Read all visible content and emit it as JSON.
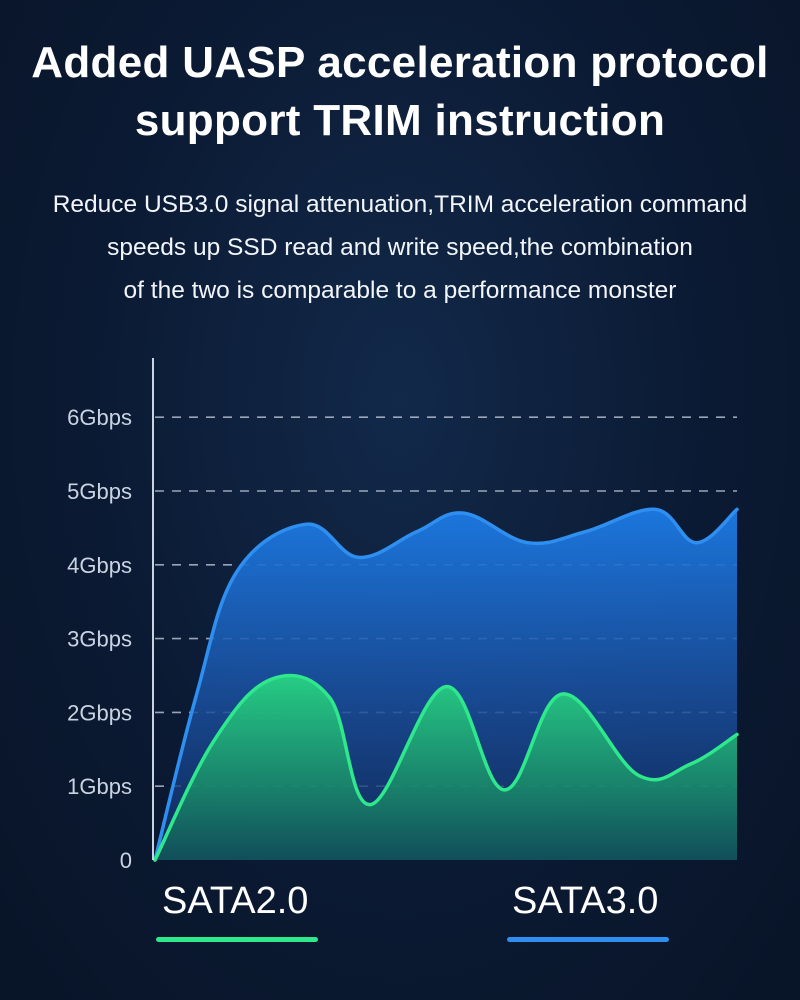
{
  "headline": {
    "line1": "Added UASP acceleration protocol",
    "line2": "support TRIM instruction"
  },
  "subheadline": {
    "line1": "Reduce USB3.0 signal attenuation,TRIM acceleration command",
    "line2": "speeds up SSD read and write speed,the combination",
    "line3": "of the two is comparable to a performance monster"
  },
  "chart_data": {
    "type": "area",
    "title": "",
    "xlabel": "",
    "ylabel": "",
    "ylim": [
      0,
      6
    ],
    "yticks": [
      {
        "value": 0,
        "label": "0"
      },
      {
        "value": 1,
        "label": "1Gbps"
      },
      {
        "value": 2,
        "label": "2Gbps"
      },
      {
        "value": 3,
        "label": "3Gbps"
      },
      {
        "value": 4,
        "label": "4Gbps"
      },
      {
        "value": 5,
        "label": "5Gbps"
      },
      {
        "value": 6,
        "label": "6Gbps"
      }
    ],
    "grid": true,
    "legend": "bottom",
    "series": [
      {
        "name": "SATA3.0",
        "color": "#2e8ff0",
        "x": [
          0,
          0.07,
          0.14,
          0.26,
          0.35,
          0.45,
          0.53,
          0.64,
          0.74,
          0.86,
          0.93,
          1.0
        ],
        "values": [
          0,
          2.2,
          3.9,
          4.55,
          4.1,
          4.45,
          4.7,
          4.3,
          4.45,
          4.75,
          4.3,
          4.75
        ]
      },
      {
        "name": "SATA2.0",
        "color": "#2ee88c",
        "x": [
          0,
          0.1,
          0.2,
          0.3,
          0.37,
          0.5,
          0.6,
          0.7,
          0.83,
          0.92,
          1.0
        ],
        "values": [
          0,
          1.6,
          2.45,
          2.2,
          0.75,
          2.35,
          0.95,
          2.25,
          1.15,
          1.3,
          1.7
        ]
      }
    ]
  },
  "legend": {
    "sata2": {
      "label": "SATA2.0",
      "color": "#2ee88c"
    },
    "sata3": {
      "label": "SATA3.0",
      "color": "#2e8ff0"
    }
  }
}
